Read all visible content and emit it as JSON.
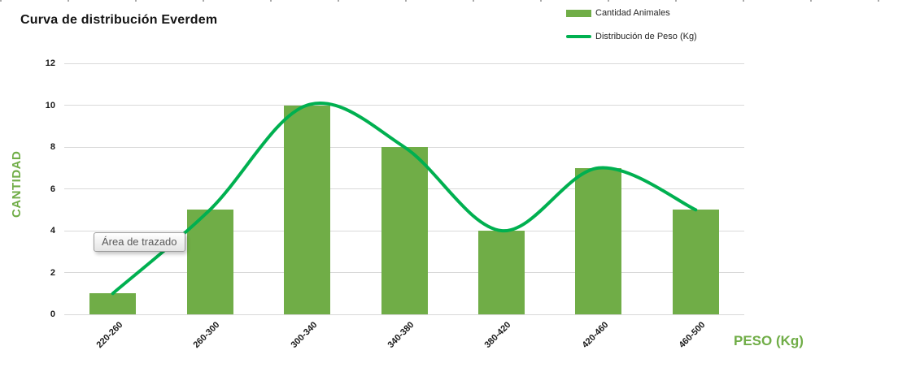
{
  "chart": {
    "title": "Curva de distribución Everdem",
    "ylabel": "CANTIDAD",
    "xlabel": "PESO (Kg)"
  },
  "tooltip": {
    "text": "Área de trazado"
  },
  "colors": {
    "bar": "#70AD47",
    "line": "#00B050",
    "axis_title": "#70AD47",
    "gridline": "#D9D9D9",
    "tick_label": "#1A1A1A"
  },
  "chart_data": {
    "type": "combo",
    "title": "Curva de distribución Everdem",
    "xlabel": "PESO (Kg)",
    "ylabel": "CANTIDAD",
    "categories": [
      "220-260",
      "260-300",
      "300-340",
      "340-380",
      "380-420",
      "420-460",
      "460-500"
    ],
    "series": [
      {
        "name": "Cantidad Animales",
        "type": "bar",
        "values": [
          1,
          5,
          10,
          8,
          4,
          7,
          5
        ]
      },
      {
        "name": "Distribución de Peso (Kg)",
        "type": "line",
        "smooth": true,
        "values": [
          1,
          5,
          10,
          8,
          4,
          7,
          5
        ]
      }
    ],
    "ylim": [
      0,
      12
    ],
    "ytick_step": 2,
    "grid": true,
    "legend_position": "top-right"
  }
}
